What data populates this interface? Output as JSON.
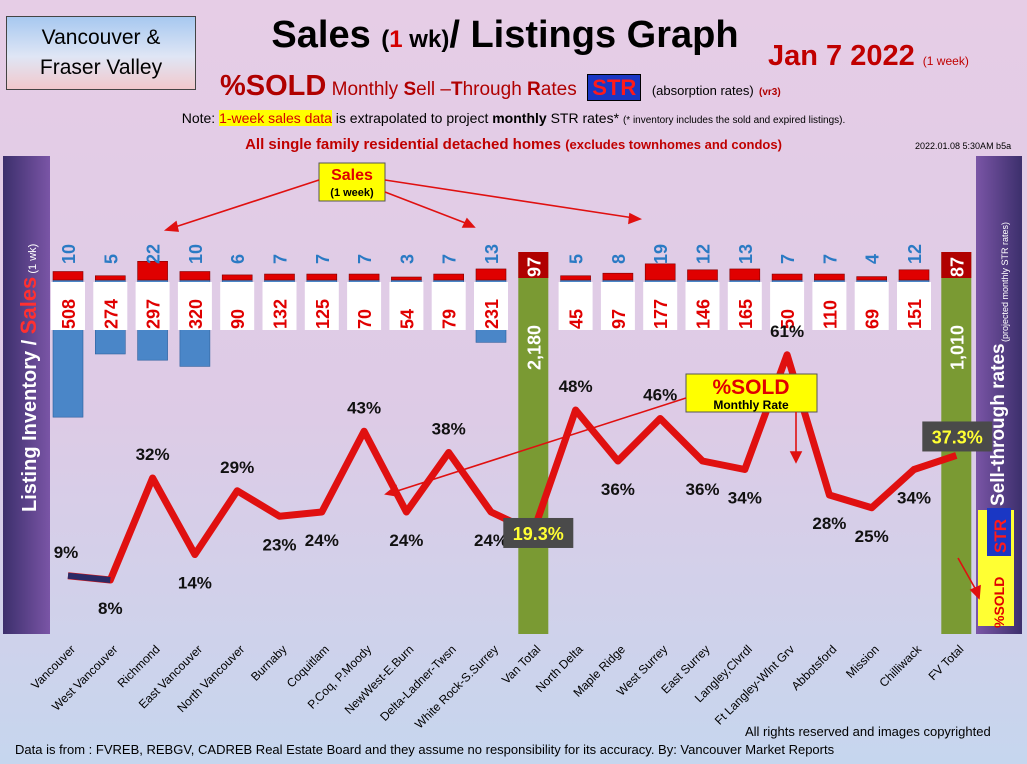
{
  "header": {
    "region_line1": "Vancouver &",
    "region_line2": "Fraser Valley",
    "title_part1": "Sales ",
    "title_paren_open": "(",
    "title_one": "1",
    "title_wk": " wk)",
    "title_part2": "/ Listings Graph",
    "date": "Jan  7  2022",
    "date_note": "(1 week)",
    "subtitle_sold": "%SOLD",
    "subtitle_monthly": " Monthly ",
    "subtitle_S": "S",
    "subtitle_ell": "ell –",
    "subtitle_T": "T",
    "subtitle_hrough": "hrough ",
    "subtitle_R": "R",
    "subtitle_ates": "ates",
    "subtitle_str": "STR",
    "subtitle_absorption": "(absorption rates)",
    "subtitle_version": "(vr3)",
    "note_prefix": "Note: ",
    "note_highlight": "1-week sales data",
    "note_middle": " is extrapolated to project ",
    "note_monthly": "monthly",
    "note_suffix": " STR rates* ",
    "note_small": "(* inventory includes the sold and expired listings).",
    "filter_main": "All single family residential detached homes ",
    "filter_sub": "(excludes townhomes and condos)",
    "timestamp": "2022.01.08 5:30AM b5a"
  },
  "left_axis": {
    "listing_inventory": "Listing Inventory / ",
    "sales": "Sales",
    "sales_note": " (1 wk)"
  },
  "right_axis": {
    "sell_through": "Sell-through rates",
    "projected": "(projected monthly STR rates)",
    "pct_sold": "%SOLD",
    "str": "STR"
  },
  "callouts": {
    "sales_label": "Sales",
    "sales_note": "(1 week)",
    "sold_label": "%SOLD",
    "sold_note": "Monthly Rate"
  },
  "footer": {
    "rights": "All rights reserved and  images copyrighted",
    "source": "Data is from : FVREB, REBGV, CADREB Real Estate Board and they assume no responsibility for its accuracy. By: Vancouver Market Reports"
  },
  "chart_data": {
    "type": "bar",
    "categories": [
      "Vancouver",
      "West Vancouver",
      "Richmond",
      "East Vancouver",
      "North Vancouver",
      "Burnaby",
      "Coquitlam",
      "P.Coq, P.Moody",
      "NewWest-E.Burn",
      "Delta-Ladner-Twsn",
      "White Rock-S.Surrey",
      "Van Total",
      "North Delta",
      "Maple Ridge",
      "West Surrey",
      "East Surrey",
      "Langley,Clvrdl",
      "Ft Langley-Wlnt Grv",
      "Abbotsford",
      "Mission",
      "Chilliwack",
      "FV Total"
    ],
    "series": [
      {
        "name": "Sales",
        "values": [
          10,
          5,
          22,
          10,
          6,
          7,
          7,
          7,
          3,
          7,
          13,
          97,
          5,
          8,
          19,
          12,
          13,
          7,
          7,
          4,
          12,
          87
        ]
      },
      {
        "name": "Listing Inventory",
        "values": [
          508,
          274,
          297,
          320,
          90,
          132,
          125,
          70,
          54,
          79,
          231,
          2180,
          45,
          97,
          177,
          146,
          165,
          50,
          110,
          69,
          151,
          1010
        ]
      },
      {
        "name": "%SOLD",
        "values": [
          9,
          8,
          32,
          14,
          29,
          23,
          24,
          43,
          24,
          38,
          24,
          19.3,
          48,
          36,
          46,
          36,
          34,
          61,
          28,
          25,
          34,
          37.3
        ]
      }
    ],
    "totals": [
      "Van Total",
      "FV Total"
    ],
    "colors": {
      "sales": "#e00000",
      "inventory": "#4a86c8",
      "total_bar": "#7a9a33",
      "str_line": "#e01010",
      "highlight": "#ffff33"
    }
  }
}
